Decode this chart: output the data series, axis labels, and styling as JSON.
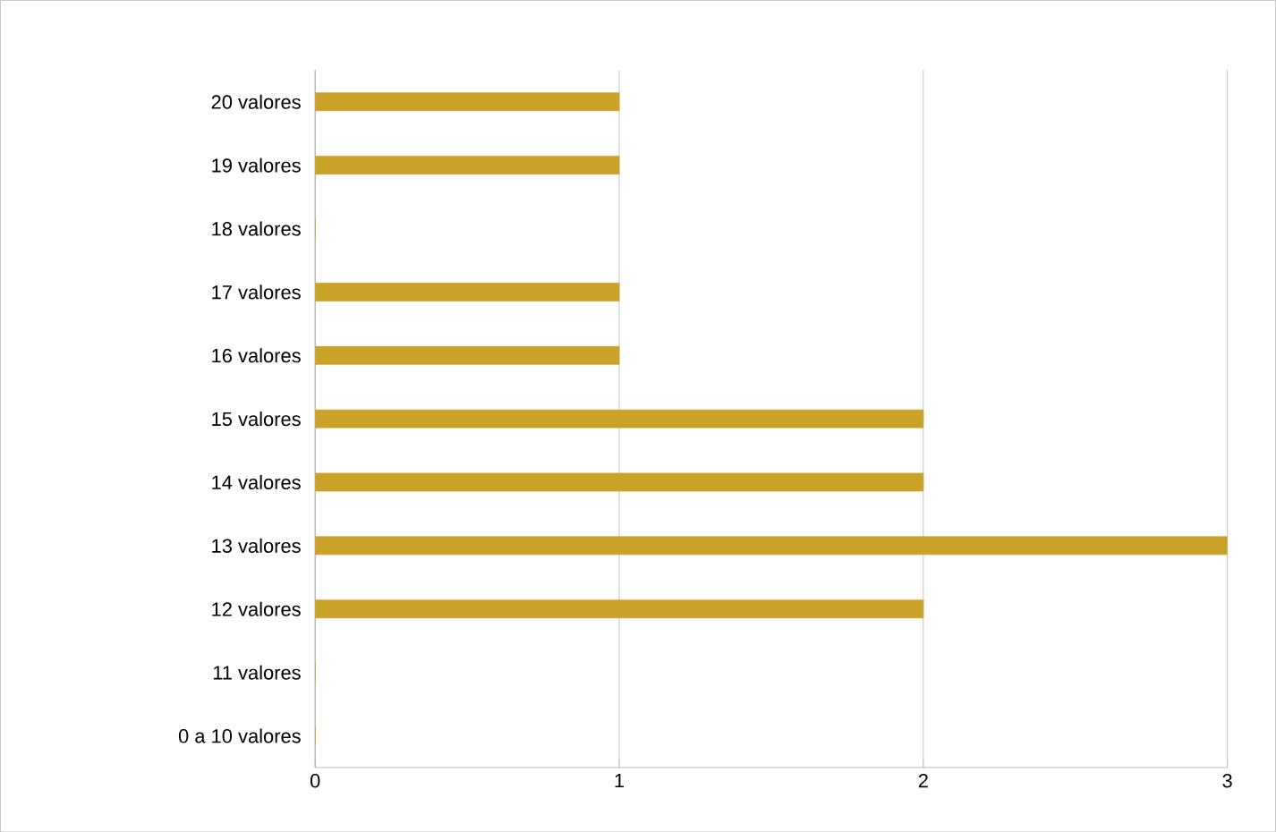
{
  "chart_data": {
    "type": "bar",
    "orientation": "horizontal",
    "categories": [
      "20 valores",
      "19 valores",
      "18 valores",
      "17 valores",
      "16 valores",
      "15 valores",
      "14 valores",
      "13 valores",
      "12 valores",
      "11 valores",
      "0 a 10 valores"
    ],
    "values": [
      1,
      1,
      0,
      1,
      1,
      2,
      2,
      3,
      2,
      0,
      0
    ],
    "color": "#c9a227",
    "xlim": [
      0,
      3
    ],
    "xticks": [
      0,
      1,
      2,
      3
    ],
    "grid": "x"
  }
}
